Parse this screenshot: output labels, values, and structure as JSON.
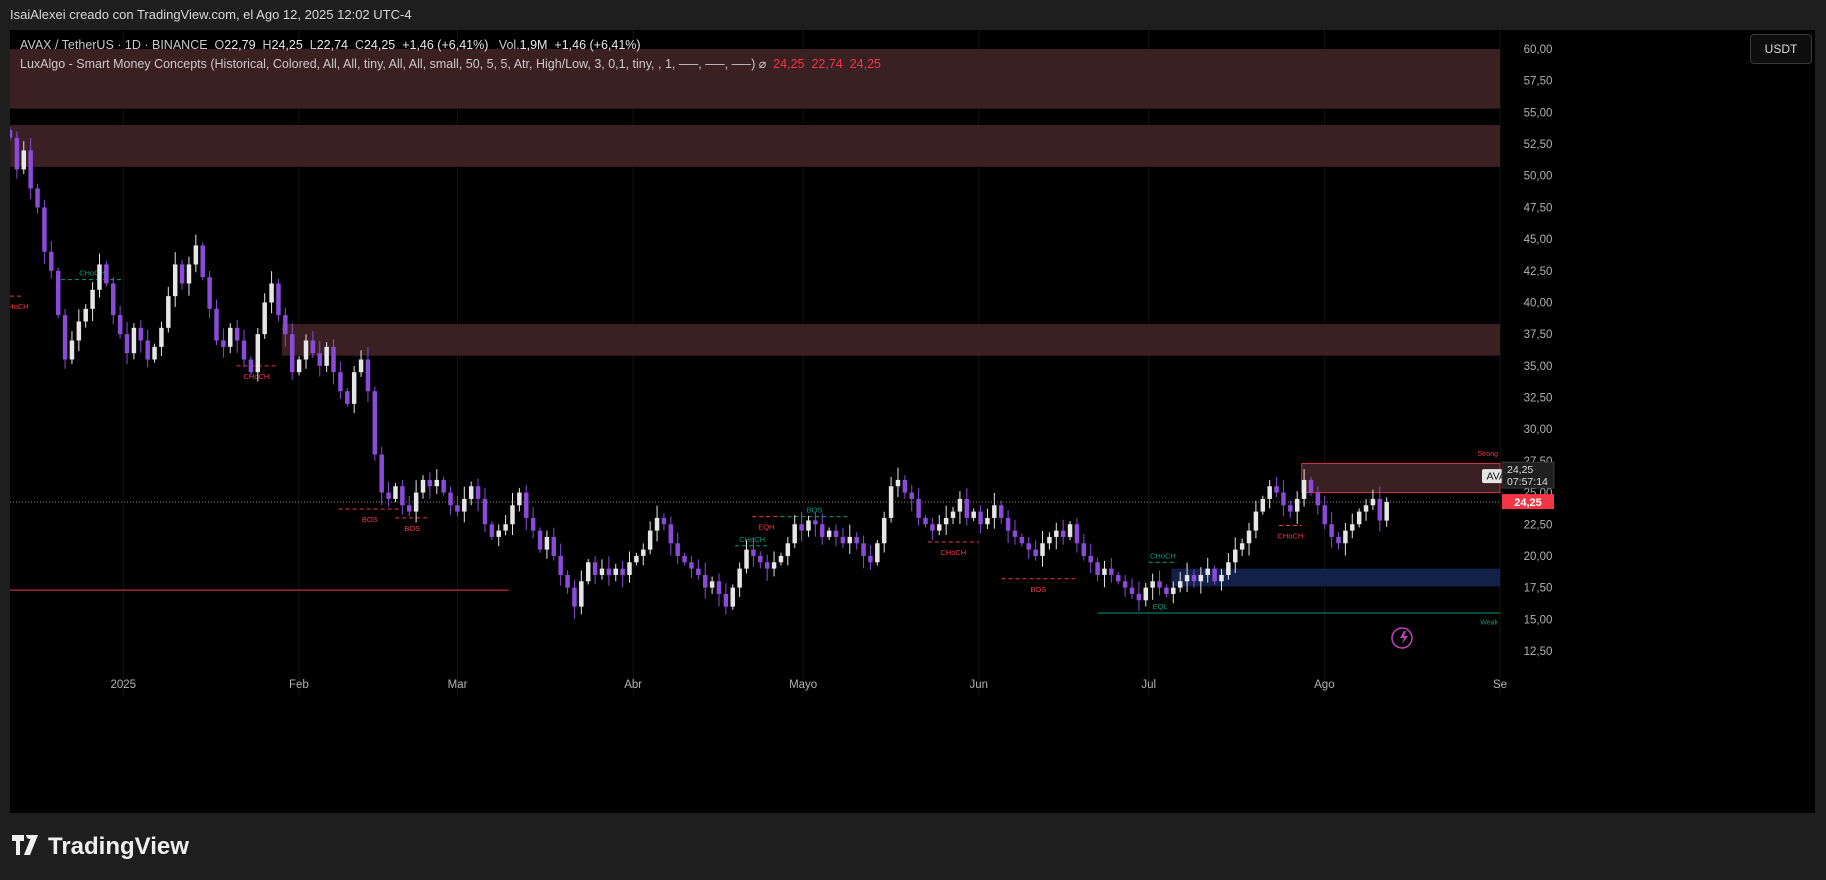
{
  "header": {
    "caption": "IsaiAlexei creado con TradingView.com, el Ago 12, 2025 12:02 UTC-4"
  },
  "legend": {
    "symbol": "AVAX / TetherUS · 1D · BINANCE",
    "open_label": "O",
    "open": "22,79",
    "high_label": "H",
    "high": "24,25",
    "low_label": "L",
    "low": "22,74",
    "close_label": "C",
    "close": "24,25",
    "change": "+1,46 (+6,41%)",
    "vol_label": "Vol.",
    "vol": "1,9M",
    "vol_change": "+1,46 (+6,41%)",
    "indicator": "LuxAlgo - Smart Money Concepts (Historical, Colored, All, All, tiny, All, All, small, 50, 5, 5, Atr, High/Low, 3, 0,1, tiny, , 1, —–, —–, —–)  ⌀",
    "ind_v1": "24,25",
    "ind_v2": "22,74",
    "ind_v3": "24,25"
  },
  "currency_button": "USDT",
  "price_tags": {
    "symbol": "AVAXUSDT",
    "price": "24,25",
    "countdown": "07:57:14",
    "last": "24,25"
  },
  "brand": "TradingView",
  "colors": {
    "up": "#e6e6e6",
    "down": "#8a4bd8",
    "bear_zone": "#f2364530",
    "bull_zone": "#2962ff40",
    "bos_bear": "#f23645",
    "bos_bull": "#089981"
  },
  "chart_data": {
    "type": "candlestick",
    "ylim": [
      11.0,
      61.5
    ],
    "y_ticks": [
      "60,00",
      "57,50",
      "55,00",
      "52,50",
      "50,00",
      "47,50",
      "45,00",
      "42,50",
      "40,00",
      "37,50",
      "35,00",
      "32,50",
      "30,00",
      "27,50",
      "25,00",
      "22,50",
      "20,00",
      "17,50",
      "15,00",
      "12,50"
    ],
    "x_ticks": [
      {
        "label": "2025",
        "date": "2025-01-01"
      },
      {
        "label": "Feb",
        "date": "2025-02-01"
      },
      {
        "label": "Mar",
        "date": "2025-03-01"
      },
      {
        "label": "Abr",
        "date": "2025-04-01"
      },
      {
        "label": "Mayo",
        "date": "2025-05-01"
      },
      {
        "label": "Jun",
        "date": "2025-06-01"
      },
      {
        "label": "Jul",
        "date": "2025-07-01"
      },
      {
        "label": "Ago",
        "date": "2025-08-01"
      },
      {
        "label": "Se",
        "date": "2025-09-01"
      }
    ],
    "x_range": [
      "2024-12-12",
      "2025-09-01"
    ],
    "candle_range": [
      "2024-12-12",
      "2025-08-12"
    ],
    "closes": [
      53,
      50.5,
      52,
      49,
      47.5,
      44,
      42.5,
      39,
      35.5,
      37,
      38.5,
      39.5,
      41,
      43,
      41.5,
      39,
      37.5,
      36,
      38,
      37,
      35.5,
      36.5,
      38,
      40.5,
      43,
      41.5,
      43,
      44.5,
      42,
      39.5,
      37,
      36.5,
      38,
      37,
      35.5,
      34.5,
      37.5,
      40,
      41.5,
      39,
      37.5,
      34.5,
      35.5,
      37,
      36,
      35,
      36.5,
      34.5,
      33,
      32,
      34.5,
      35.5,
      33,
      28,
      25,
      24.5,
      25.5,
      24,
      23.5,
      25,
      26,
      25.5,
      26,
      25,
      24,
      23.5,
      24.5,
      25.5,
      24.5,
      22.5,
      21.5,
      22,
      22.5,
      24,
      25,
      23,
      22,
      20.5,
      21.5,
      20,
      18.5,
      17.5,
      16,
      18,
      19.5,
      18.5,
      19,
      18.5,
      19,
      18.5,
      19.5,
      20,
      20.5,
      22,
      23,
      22.5,
      21,
      20,
      19.5,
      19,
      18.5,
      17.5,
      18,
      17,
      16,
      17.5,
      19,
      20.5,
      20,
      19.5,
      19,
      19.5,
      20,
      21,
      22.5,
      22,
      22.8,
      22.5,
      21.5,
      22,
      21.5,
      21,
      21.5,
      21,
      20,
      19.5,
      21,
      23,
      25.5,
      26,
      25,
      24.5,
      23,
      22.5,
      22,
      22.5,
      23,
      23.5,
      24.5,
      23,
      23.5,
      22.5,
      23,
      24,
      23,
      22,
      21.5,
      21,
      20.5,
      20,
      21,
      21.5,
      22,
      21.5,
      22.5,
      21,
      20,
      19.5,
      18.5,
      19,
      18.5,
      18,
      17.5,
      17,
      16.5,
      17.5,
      18,
      17.5,
      17,
      17.5,
      18,
      18.5,
      18,
      18.5,
      19,
      18,
      18.5,
      19.5,
      20.5,
      21,
      22,
      23.5,
      24.5,
      25.5,
      25,
      24,
      23.5,
      24.5,
      26,
      25,
      24,
      22.5,
      21.5,
      21,
      22,
      22.5,
      23.5,
      24,
      24.5,
      22.79,
      24.25
    ],
    "zones": [
      {
        "type": "bearish",
        "from": "2024-12-12",
        "top": 60.0,
        "bottom": 55.3
      },
      {
        "type": "bearish",
        "from": "2024-12-12",
        "top": 54.0,
        "bottom": 50.7
      },
      {
        "type": "bearish",
        "from": "2025-01-29",
        "top": 38.3,
        "bottom": 35.8
      },
      {
        "type": "bearish",
        "from": "2025-07-28",
        "top": 27.3,
        "bottom": 25.0
      },
      {
        "type": "bullish",
        "from": "2025-07-05",
        "top": 19.0,
        "bottom": 17.6
      }
    ],
    "current_price": 24.25,
    "structure": [
      {
        "label": "CHoCH",
        "kind": "bull",
        "from": "2024-12-21",
        "to": "2025-01-01",
        "level": 41.8
      },
      {
        "label": "CHoCH",
        "kind": "bear",
        "from": "2024-12-12",
        "to": "2024-12-14",
        "level": 40.5
      },
      {
        "label": "CHoCH",
        "kind": "bear",
        "from": "2025-01-21",
        "to": "2025-01-28",
        "level": 35.0
      },
      {
        "label": "BOS",
        "kind": "bear",
        "from": "2025-02-08",
        "to": "2025-02-19",
        "level": 23.7
      },
      {
        "label": "BOS",
        "kind": "bear",
        "from": "2025-02-18",
        "to": "2025-02-24",
        "level": 23.0
      },
      {
        "label": "CHoCH",
        "kind": "bull",
        "from": "2025-04-19",
        "to": "2025-04-25",
        "level": 20.8
      },
      {
        "label": "EQH",
        "kind": "bear",
        "from": "2025-04-22",
        "to": "2025-04-27",
        "level": 23.1
      },
      {
        "label": "BOS",
        "kind": "bull",
        "from": "2025-04-27",
        "to": "2025-05-09",
        "level": 23.1
      },
      {
        "label": "CHoCH",
        "kind": "bear",
        "from": "2025-05-23",
        "to": "2025-06-01",
        "level": 21.1
      },
      {
        "label": "BOS",
        "kind": "bear",
        "from": "2025-06-05",
        "to": "2025-06-18",
        "level": 18.2
      },
      {
        "label": "EQL",
        "kind": "bull",
        "from": "2025-06-22",
        "to": "2025-07-14",
        "level": 15.5
      },
      {
        "label": "CHoCH",
        "kind": "bull",
        "from": "2025-07-01",
        "to": "2025-07-06",
        "level": 19.5
      },
      {
        "label": "CHoCH",
        "kind": "bear",
        "from": "2025-07-24",
        "to": "2025-07-28",
        "level": 22.4
      }
    ],
    "strong_weak": [
      {
        "label": "Strong",
        "kind": "bear",
        "level": 27.9
      },
      {
        "label": "Weak",
        "kind": "bull",
        "level": 14.6
      }
    ],
    "support_line": {
      "from": "2024-12-12",
      "to": "2025-03-10",
      "level": 17.3
    },
    "eql_line": {
      "from": "2025-06-22",
      "to": "2025-09-01",
      "level": 15.5
    }
  }
}
